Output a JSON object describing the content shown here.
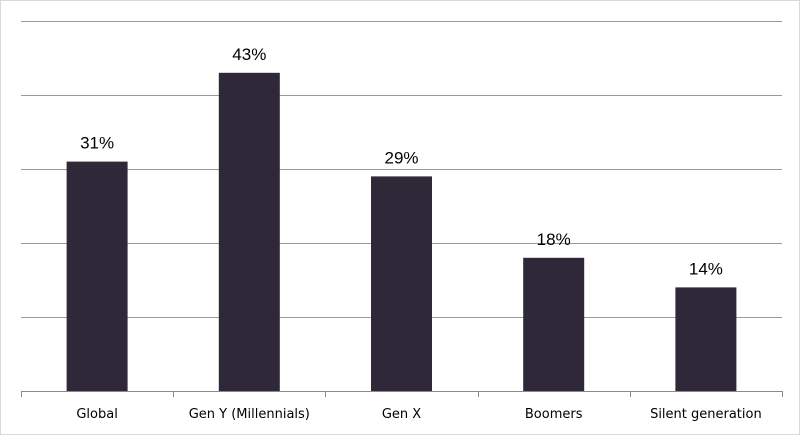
{
  "chart_data": {
    "type": "bar",
    "title": "",
    "xlabel": "",
    "ylabel": "",
    "categories": [
      "Global",
      "Gen Y (Millennials)",
      "Gen X",
      "Boomers",
      "Silent generation"
    ],
    "values": [
      31,
      43,
      29,
      18,
      14
    ],
    "data_labels": [
      "31%",
      "43%",
      "29%",
      "18%",
      "14%"
    ],
    "ylim": [
      0,
      50
    ],
    "grid": true,
    "legend": "none",
    "bar_color": "#2e2839"
  }
}
